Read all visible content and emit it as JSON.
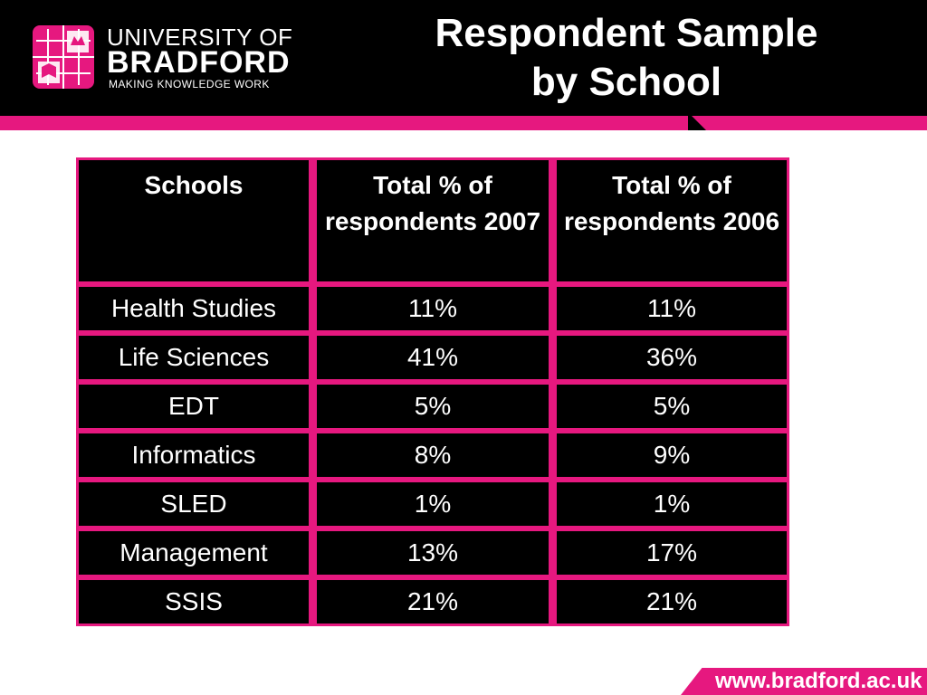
{
  "logo": {
    "line1": "UNIVERSITY OF",
    "line2": "BRADFORD",
    "tagline": "MAKING KNOWLEDGE WORK",
    "crest_icon": "university-crest-icon"
  },
  "title_line1": "Respondent Sample",
  "title_line2": "by School",
  "table": {
    "headers": [
      "Schools",
      "Total % of respondents 2007",
      "Total % of respondents 2006"
    ],
    "rows": [
      [
        "Health Studies",
        "11%",
        "11%"
      ],
      [
        "Life Sciences",
        "41%",
        "36%"
      ],
      [
        "EDT",
        "5%",
        "5%"
      ],
      [
        "Informatics",
        "8%",
        "9%"
      ],
      [
        "SLED",
        "1%",
        "1%"
      ],
      [
        "Management",
        "13%",
        "17%"
      ],
      [
        "SSIS",
        "21%",
        "21%"
      ]
    ]
  },
  "footer_url": "www.bradford.ac.uk",
  "colors": {
    "accent": "#e6187f",
    "header_bg": "#000000",
    "cell_bg": "#000000",
    "text": "#ffffff"
  }
}
